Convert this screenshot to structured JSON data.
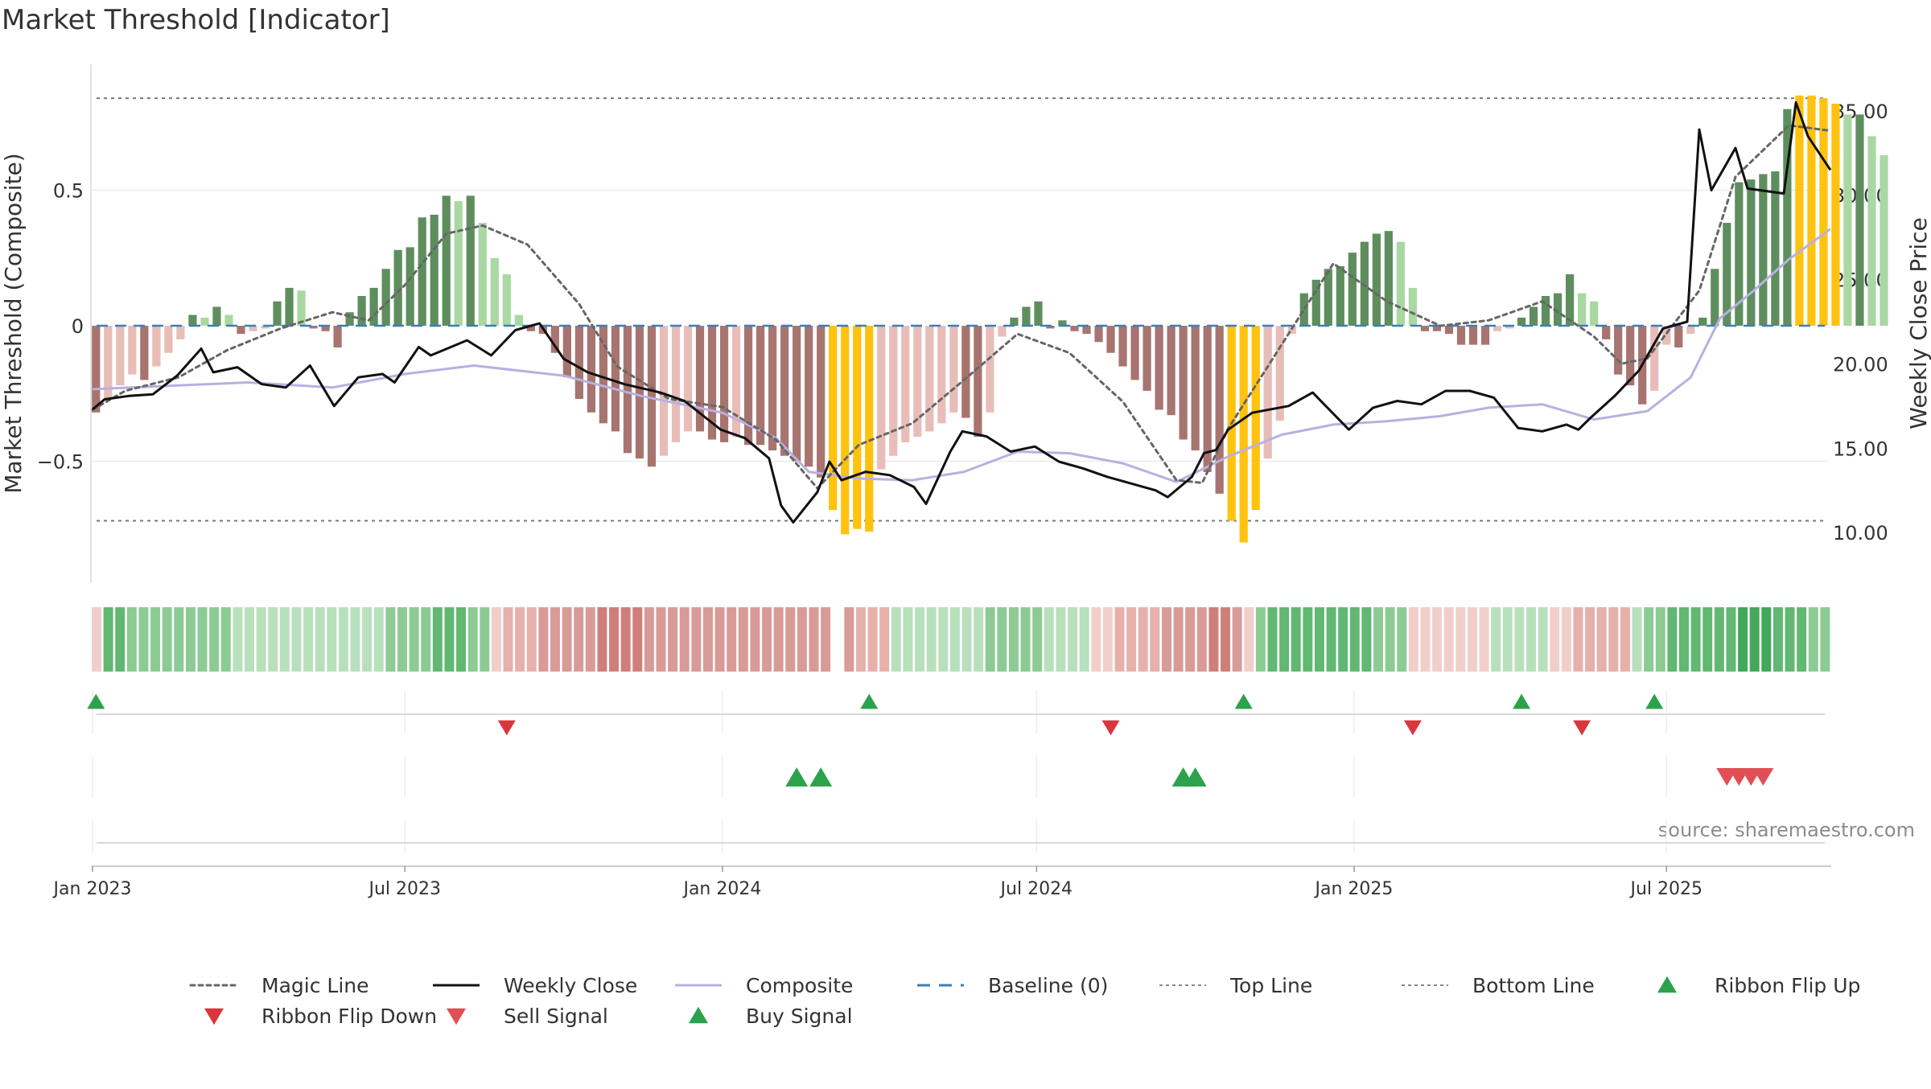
{
  "chart_data": {
    "type": "bar",
    "title": "Market Threshold [Indicator]",
    "ylabel_left": "Market Threshold (Composite)",
    "ylabel_right": "Weekly Close Price",
    "ylim_left": [
      -0.95,
      0.98
    ],
    "ylim_right": [
      7.0,
      38.0
    ],
    "yticks_left": [
      0.5,
      0,
      -0.5
    ],
    "yticks_left_labels": [
      "0.5",
      "0",
      "−0.5"
    ],
    "yticks_right": [
      35,
      30,
      25,
      20,
      15,
      10
    ],
    "yticks_right_labels": [
      "35.00",
      "30.00",
      "25.00",
      "20.00",
      "15.00",
      "10.00"
    ],
    "x_start": "2023-01-01",
    "x_end": "2025-10-04",
    "xtick_dates": [
      "2023-01-01",
      "2023-07-01",
      "2024-01-01",
      "2024-07-01",
      "2025-01-01",
      "2025-07-01"
    ],
    "xtick_labels": [
      "Jan 2023",
      "Jul 2023",
      "Jan 2024",
      "Jul 2024",
      "Jan 2025",
      "Jul 2025"
    ],
    "grid": true,
    "legend_position": "bottom",
    "top_line": 0.84,
    "bottom_line": -0.72,
    "baseline": 0,
    "colors": {
      "pos_strong": "#5e8e5e",
      "pos_weak": "#a9d8a3",
      "neg_strong": "#a87470",
      "neg_weak": "#e8bdb8",
      "extreme": "#ffc20e",
      "weekly_close": "#111111",
      "composite": "#b9b0e0",
      "magic_line": "#666666",
      "baseline": "#3f7fb1",
      "threshold_lines": "#777777",
      "buy": "#2ca24d",
      "sell": "#d9363e"
    },
    "composite_bars": {
      "start_date": "2023-01-03",
      "step_days": 7,
      "values": [
        -0.32,
        -0.27,
        -0.22,
        -0.18,
        -0.2,
        -0.15,
        -0.1,
        -0.05,
        0.04,
        0.03,
        0.07,
        0.04,
        -0.03,
        -0.02,
        -0.01,
        0.09,
        0.14,
        0.13,
        -0.01,
        -0.02,
        -0.08,
        0.05,
        0.11,
        0.14,
        0.21,
        0.28,
        0.29,
        0.4,
        0.41,
        0.48,
        0.46,
        0.48,
        0.38,
        0.25,
        0.19,
        0.04,
        -0.02,
        -0.03,
        -0.1,
        -0.19,
        -0.27,
        -0.32,
        -0.36,
        -0.39,
        -0.47,
        -0.49,
        -0.52,
        -0.48,
        -0.43,
        -0.39,
        -0.39,
        -0.42,
        -0.43,
        -0.41,
        -0.44,
        -0.44,
        -0.46,
        -0.48,
        -0.5,
        -0.52,
        -0.56,
        -0.68,
        -0.77,
        -0.75,
        -0.76,
        -0.53,
        -0.48,
        -0.43,
        -0.41,
        -0.39,
        -0.36,
        -0.32,
        -0.34,
        -0.41,
        -0.32,
        -0.04,
        0.03,
        0.07,
        0.09,
        -0.01,
        0.02,
        -0.02,
        -0.03,
        -0.06,
        -0.1,
        -0.15,
        -0.2,
        -0.24,
        -0.31,
        -0.33,
        -0.42,
        -0.46,
        -0.54,
        -0.62,
        -0.72,
        -0.8,
        -0.68,
        -0.49,
        -0.35,
        -0.03,
        0.12,
        0.17,
        0.21,
        0.22,
        0.27,
        0.31,
        0.34,
        0.35,
        0.31,
        0.14,
        -0.02,
        -0.02,
        -0.03,
        -0.07,
        -0.07,
        -0.07,
        -0.02,
        -0.01,
        0.03,
        0.07,
        0.11,
        0.12,
        0.19,
        0.12,
        0.09,
        -0.05,
        -0.18,
        -0.22,
        -0.29,
        -0.24,
        -0.07,
        -0.08,
        -0.03,
        0.03,
        0.21,
        0.38,
        0.53,
        0.54,
        0.56,
        0.57,
        0.8,
        0.85,
        0.85,
        0.84,
        0.82,
        0.78,
        0.78,
        0.7,
        0.63
      ]
    },
    "weekly_close_series": [
      [
        "2023-01-01",
        17.3
      ],
      [
        "2023-01-08",
        17.9
      ],
      [
        "2023-01-22",
        18.1
      ],
      [
        "2023-02-05",
        18.2
      ],
      [
        "2023-02-19",
        19.3
      ],
      [
        "2023-03-05",
        20.9
      ],
      [
        "2023-03-12",
        19.5
      ],
      [
        "2023-03-26",
        19.8
      ],
      [
        "2023-04-09",
        18.8
      ],
      [
        "2023-04-23",
        18.6
      ],
      [
        "2023-05-07",
        19.9
      ],
      [
        "2023-05-21",
        17.5
      ],
      [
        "2023-06-04",
        19.2
      ],
      [
        "2023-06-18",
        19.4
      ],
      [
        "2023-06-25",
        18.9
      ],
      [
        "2023-07-09",
        21.0
      ],
      [
        "2023-07-16",
        20.5
      ],
      [
        "2023-08-06",
        21.4
      ],
      [
        "2023-08-20",
        20.5
      ],
      [
        "2023-09-03",
        22.0
      ],
      [
        "2023-09-17",
        22.4
      ],
      [
        "2023-10-01",
        20.3
      ],
      [
        "2023-10-15",
        19.5
      ],
      [
        "2023-11-05",
        18.8
      ],
      [
        "2023-11-26",
        18.3
      ],
      [
        "2023-12-10",
        17.8
      ],
      [
        "2023-12-31",
        16.1
      ],
      [
        "2024-01-14",
        15.6
      ],
      [
        "2024-01-28",
        14.4
      ],
      [
        "2024-02-04",
        11.6
      ],
      [
        "2024-02-11",
        10.6
      ],
      [
        "2024-02-25",
        12.4
      ],
      [
        "2024-03-03",
        14.2
      ],
      [
        "2024-03-10",
        13.1
      ],
      [
        "2024-03-24",
        13.6
      ],
      [
        "2024-04-07",
        13.4
      ],
      [
        "2024-04-21",
        12.7
      ],
      [
        "2024-04-28",
        11.7
      ],
      [
        "2024-05-12",
        14.8
      ],
      [
        "2024-05-19",
        16.0
      ],
      [
        "2024-06-02",
        15.7
      ],
      [
        "2024-06-16",
        14.8
      ],
      [
        "2024-06-30",
        15.1
      ],
      [
        "2024-07-14",
        14.2
      ],
      [
        "2024-07-28",
        13.8
      ],
      [
        "2024-08-11",
        13.3
      ],
      [
        "2024-08-25",
        12.9
      ],
      [
        "2024-09-08",
        12.5
      ],
      [
        "2024-09-15",
        12.1
      ],
      [
        "2024-09-29",
        13.3
      ],
      [
        "2024-10-06",
        14.7
      ],
      [
        "2024-10-13",
        14.9
      ],
      [
        "2024-10-20",
        16.1
      ],
      [
        "2024-11-03",
        17.1
      ],
      [
        "2024-11-24",
        17.5
      ],
      [
        "2024-12-08",
        18.3
      ],
      [
        "2024-12-29",
        16.1
      ],
      [
        "2025-01-12",
        17.4
      ],
      [
        "2025-01-26",
        17.8
      ],
      [
        "2025-02-09",
        17.6
      ],
      [
        "2025-02-23",
        18.4
      ],
      [
        "2025-03-09",
        18.4
      ],
      [
        "2025-03-23",
        18.0
      ],
      [
        "2025-04-06",
        16.2
      ],
      [
        "2025-04-20",
        16.0
      ],
      [
        "2025-05-04",
        16.4
      ],
      [
        "2025-05-11",
        16.1
      ],
      [
        "2025-05-18",
        16.8
      ],
      [
        "2025-06-01",
        18.1
      ],
      [
        "2025-06-15",
        19.6
      ],
      [
        "2025-06-29",
        22.1
      ],
      [
        "2025-07-13",
        22.5
      ],
      [
        "2025-07-20",
        33.9
      ],
      [
        "2025-07-27",
        30.3
      ],
      [
        "2025-08-10",
        32.8
      ],
      [
        "2025-08-17",
        30.4
      ],
      [
        "2025-09-07",
        30.1
      ],
      [
        "2025-09-14",
        35.5
      ],
      [
        "2025-09-21",
        33.5
      ],
      [
        "2025-10-04",
        31.5
      ]
    ],
    "composite_line_series": [
      [
        "2023-01-01",
        18.5
      ],
      [
        "2023-04-01",
        18.9
      ],
      [
        "2023-05-20",
        18.6
      ],
      [
        "2023-07-01",
        19.4
      ],
      [
        "2023-08-10",
        19.9
      ],
      [
        "2023-10-01",
        19.3
      ],
      [
        "2023-11-15",
        18.1
      ],
      [
        "2024-01-01",
        17.1
      ],
      [
        "2024-02-01",
        15.6
      ],
      [
        "2024-02-20",
        13.6
      ],
      [
        "2024-03-20",
        13.2
      ],
      [
        "2024-04-20",
        13.1
      ],
      [
        "2024-05-20",
        13.6
      ],
      [
        "2024-06-20",
        14.8
      ],
      [
        "2024-07-20",
        14.7
      ],
      [
        "2024-08-20",
        14.1
      ],
      [
        "2024-09-20",
        13.0
      ],
      [
        "2024-10-20",
        14.5
      ],
      [
        "2024-11-20",
        15.8
      ],
      [
        "2024-12-20",
        16.4
      ],
      [
        "2025-01-20",
        16.6
      ],
      [
        "2025-02-20",
        16.9
      ],
      [
        "2025-03-20",
        17.4
      ],
      [
        "2025-04-20",
        17.6
      ],
      [
        "2025-05-20",
        16.7
      ],
      [
        "2025-06-20",
        17.2
      ],
      [
        "2025-07-15",
        19.2
      ],
      [
        "2025-08-01",
        22.7
      ],
      [
        "2025-08-20",
        24.3
      ],
      [
        "2025-09-10",
        26.2
      ],
      [
        "2025-10-04",
        28.0
      ]
    ],
    "magic_line_series": [
      [
        "2023-01-01",
        -0.31
      ],
      [
        "2023-01-20",
        -0.24
      ],
      [
        "2023-02-20",
        -0.19
      ],
      [
        "2023-03-20",
        -0.09
      ],
      [
        "2023-04-20",
        -0.01
      ],
      [
        "2023-05-20",
        0.05
      ],
      [
        "2023-06-10",
        0.02
      ],
      [
        "2023-07-01",
        0.15
      ],
      [
        "2023-07-25",
        0.34
      ],
      [
        "2023-08-15",
        0.37
      ],
      [
        "2023-09-10",
        0.3
      ],
      [
        "2023-10-10",
        0.08
      ],
      [
        "2023-11-01",
        -0.15
      ],
      [
        "2023-12-01",
        -0.27
      ],
      [
        "2024-01-01",
        -0.3
      ],
      [
        "2024-02-01",
        -0.42
      ],
      [
        "2024-02-25",
        -0.6
      ],
      [
        "2024-03-20",
        -0.44
      ],
      [
        "2024-04-20",
        -0.36
      ],
      [
        "2024-05-20",
        -0.2
      ],
      [
        "2024-06-20",
        -0.03
      ],
      [
        "2024-07-20",
        -0.1
      ],
      [
        "2024-08-20",
        -0.28
      ],
      [
        "2024-09-20",
        -0.57
      ],
      [
        "2024-10-05",
        -0.58
      ],
      [
        "2024-10-20",
        -0.38
      ],
      [
        "2024-11-20",
        -0.07
      ],
      [
        "2024-12-20",
        0.23
      ],
      [
        "2025-01-20",
        0.09
      ],
      [
        "2025-02-20",
        0.0
      ],
      [
        "2025-03-20",
        0.02
      ],
      [
        "2025-04-20",
        0.09
      ],
      [
        "2025-05-20",
        -0.04
      ],
      [
        "2025-06-05",
        -0.14
      ],
      [
        "2025-06-20",
        -0.12
      ],
      [
        "2025-07-20",
        0.13
      ],
      [
        "2025-08-10",
        0.55
      ],
      [
        "2025-09-10",
        0.74
      ],
      [
        "2025-10-04",
        0.72
      ]
    ],
    "ribbon": [
      {
        "value": -1
      },
      {
        "value": 3
      },
      {
        "value": 3
      },
      {
        "value": 2
      },
      {
        "value": 2
      },
      {
        "value": 2
      },
      {
        "value": 2
      },
      {
        "value": 2
      },
      {
        "value": 2
      },
      {
        "value": 2
      },
      {
        "value": 2
      },
      {
        "value": 2
      },
      {
        "value": 1
      },
      {
        "value": 1
      },
      {
        "value": 1
      },
      {
        "value": 1
      },
      {
        "value": 1
      },
      {
        "value": 1
      },
      {
        "value": 1
      },
      {
        "value": 1
      },
      {
        "value": 1
      },
      {
        "value": 1
      },
      {
        "value": 1
      },
      {
        "value": 1
      },
      {
        "value": 1
      },
      {
        "value": 2
      },
      {
        "value": 2
      },
      {
        "value": 2
      },
      {
        "value": 2
      },
      {
        "value": 3
      },
      {
        "value": 3
      },
      {
        "value": 3
      },
      {
        "value": 2
      },
      {
        "value": 2
      },
      {
        "value": -1
      },
      {
        "value": -2
      },
      {
        "value": -2
      },
      {
        "value": -2
      },
      {
        "value": -3
      },
      {
        "value": -3
      },
      {
        "value": -3
      },
      {
        "value": -3
      },
      {
        "value": -3
      },
      {
        "value": -4
      },
      {
        "value": -4
      },
      {
        "value": -4
      },
      {
        "value": -4
      },
      {
        "value": -3
      },
      {
        "value": -3
      },
      {
        "value": -3
      },
      {
        "value": -3
      },
      {
        "value": -3
      },
      {
        "value": -3
      },
      {
        "value": -3
      },
      {
        "value": -3
      },
      {
        "value": -3
      },
      {
        "value": -3
      },
      {
        "value": -3
      },
      {
        "value": -3
      },
      {
        "value": -3
      },
      {
        "value": -3
      },
      {
        "value": -3
      },
      {
        "value": -3
      },
      {
        "value": 0
      },
      {
        "value": -3
      },
      {
        "value": -2
      },
      {
        "value": -2
      },
      {
        "value": -2
      },
      {
        "value": 1
      },
      {
        "value": 1
      },
      {
        "value": 1
      },
      {
        "value": 1
      },
      {
        "value": 1
      },
      {
        "value": 1
      },
      {
        "value": 1
      },
      {
        "value": 1
      },
      {
        "value": 2
      },
      {
        "value": 2
      },
      {
        "value": 2
      },
      {
        "value": 2
      },
      {
        "value": 2
      },
      {
        "value": 1
      },
      {
        "value": 1
      },
      {
        "value": 1
      },
      {
        "value": 1
      },
      {
        "value": -1
      },
      {
        "value": -1
      },
      {
        "value": -2
      },
      {
        "value": -2
      },
      {
        "value": -2
      },
      {
        "value": -2
      },
      {
        "value": -3
      },
      {
        "value": -3
      },
      {
        "value": -3
      },
      {
        "value": -3
      },
      {
        "value": -4
      },
      {
        "value": -4
      },
      {
        "value": -3
      },
      {
        "value": -1
      },
      {
        "value": 2
      },
      {
        "value": 3
      },
      {
        "value": 3
      },
      {
        "value": 3
      },
      {
        "value": 3
      },
      {
        "value": 3
      },
      {
        "value": 3
      },
      {
        "value": 3
      },
      {
        "value": 3
      },
      {
        "value": 3
      },
      {
        "value": 2
      },
      {
        "value": 2
      },
      {
        "value": 2
      },
      {
        "value": -1
      },
      {
        "value": -1
      },
      {
        "value": -1
      },
      {
        "value": -1
      },
      {
        "value": -1
      },
      {
        "value": -1
      },
      {
        "value": -1
      },
      {
        "value": 1
      },
      {
        "value": 1
      },
      {
        "value": 1
      },
      {
        "value": 1
      },
      {
        "value": 1
      },
      {
        "value": -1
      },
      {
        "value": -1
      },
      {
        "value": -2
      },
      {
        "value": -2
      },
      {
        "value": -2
      },
      {
        "value": -2
      },
      {
        "value": -2
      },
      {
        "value": 1
      },
      {
        "value": 2
      },
      {
        "value": 2
      },
      {
        "value": 3
      },
      {
        "value": 3
      },
      {
        "value": 3
      },
      {
        "value": 3
      },
      {
        "value": 3
      },
      {
        "value": 3
      },
      {
        "value": 4
      },
      {
        "value": 4
      },
      {
        "value": 4
      },
      {
        "value": 3
      },
      {
        "value": 3
      },
      {
        "value": 3
      },
      {
        "value": 2
      },
      {
        "value": 2
      }
    ],
    "ribbon_flip_up_dates": [
      "2023-01-03",
      "2024-03-26",
      "2024-10-29",
      "2025-04-08",
      "2025-06-24"
    ],
    "ribbon_flip_down_dates": [
      "2023-08-29",
      "2024-08-13",
      "2025-02-04",
      "2025-05-13"
    ],
    "buy_signal_dates": [
      "2024-02-13",
      "2024-02-27",
      "2024-09-24",
      "2024-10-01"
    ],
    "sell_signal_dates": [
      "2025-08-05",
      "2025-08-12",
      "2025-08-19",
      "2025-08-26"
    ],
    "legend": [
      {
        "label": "Magic Line",
        "type": "dotted",
        "color": "#666666"
      },
      {
        "label": "Weekly Close",
        "type": "solid",
        "color": "#111111"
      },
      {
        "label": "Composite",
        "type": "solid",
        "color": "#b9b0e0"
      },
      {
        "label": "Baseline (0)",
        "type": "dashed",
        "color": "#3f7fb1"
      },
      {
        "label": "Top Line",
        "type": "dotted-fine",
        "color": "#888888"
      },
      {
        "label": "Bottom Line",
        "type": "dotted-fine",
        "color": "#888888"
      },
      {
        "label": "Ribbon Flip Up",
        "type": "triangle-up",
        "color": "#2ca24d"
      },
      {
        "label": "Ribbon Flip Down",
        "type": "triangle-down",
        "color": "#d9363e"
      },
      {
        "label": "Sell Signal",
        "type": "triangle-down",
        "color": "#e04f55"
      },
      {
        "label": "Buy Signal",
        "type": "triangle-up",
        "color": "#2ca24d"
      }
    ],
    "source_text": "source: sharemaestro.com"
  }
}
